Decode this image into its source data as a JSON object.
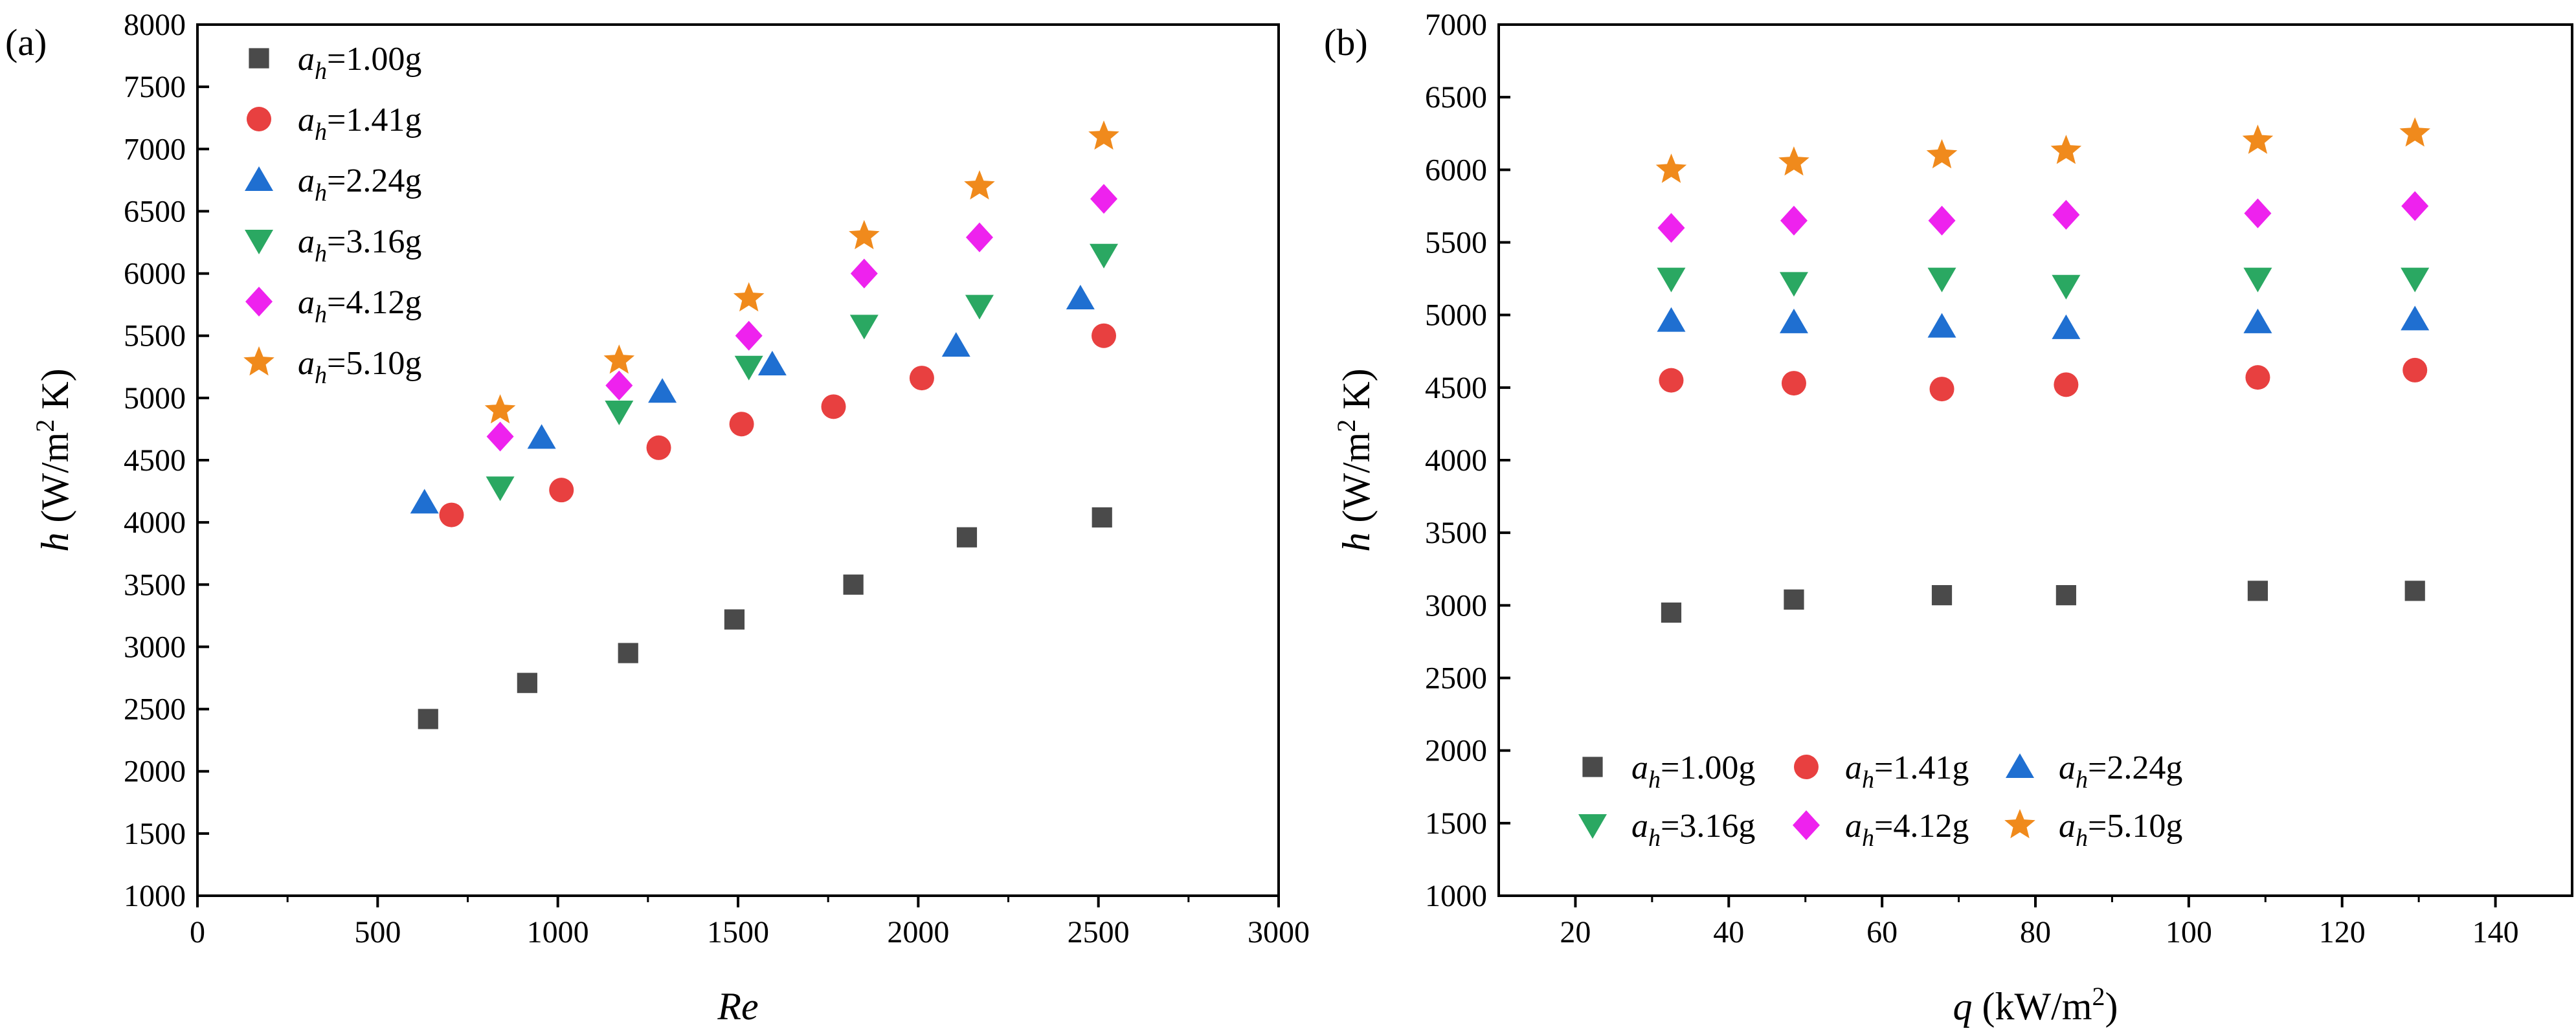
{
  "panels": [
    {
      "label": "(a)",
      "xlabel": "Re",
      "ylabel_prefix": "h",
      "ylabel_main": " (W/m",
      "ylabel_sup": "2",
      "ylabel_end": " K)"
    },
    {
      "label": "(b)",
      "xlabel_prefix": "q",
      "xlabel_main": " (kW/m",
      "xlabel_sup": "2",
      "xlabel_end": ")",
      "ylabel_prefix": "h",
      "ylabel_main": " (W/m",
      "ylabel_sup": "2",
      "ylabel_end": " K)"
    }
  ],
  "chart_data": [
    {
      "type": "scatter",
      "title": "",
      "xlabel": "Re",
      "ylabel": "h (W/m2 K)",
      "xlim": [
        0,
        3000
      ],
      "ylim": [
        1000,
        8000
      ],
      "xticks": [
        "0",
        "500",
        "1000",
        "1500",
        "2000",
        "2500",
        "3000"
      ],
      "yticks": [
        "1000",
        "1500",
        "2000",
        "2500",
        "3000",
        "3500",
        "4000",
        "4500",
        "5000",
        "5500",
        "6000",
        "6500",
        "7000",
        "7500",
        "8000"
      ],
      "legend_position": "top-left",
      "series": [
        {
          "name_main": "a",
          "name_sub": "h",
          "name_value": "=1.00g",
          "marker": "square",
          "color": "#4a4a4a",
          "x": [
            640,
            915,
            1195,
            1490,
            1820,
            2135,
            2510
          ],
          "y": [
            2420,
            2710,
            2950,
            3220,
            3500,
            3880,
            4040
          ]
        },
        {
          "name_main": "a",
          "name_sub": "h",
          "name_value": "=1.41g",
          "marker": "circle",
          "color": "#e84040",
          "x": [
            705,
            1010,
            1280,
            1510,
            1765,
            2010,
            2515
          ],
          "y": [
            4060,
            4260,
            4600,
            4790,
            4930,
            5160,
            5500
          ]
        },
        {
          "name_main": "a",
          "name_sub": "h",
          "name_value": "=2.24g",
          "marker": "triangle-up",
          "color": "#1f6fd1",
          "x": [
            630,
            955,
            1290,
            1595,
            2105,
            2450
          ],
          "y": [
            4160,
            4680,
            5050,
            5270,
            5420,
            5800
          ]
        },
        {
          "name_main": "a",
          "name_sub": "h",
          "name_value": "=3.16g",
          "marker": "triangle-down",
          "color": "#2aa862",
          "x": [
            840,
            1170,
            1530,
            1850,
            2170,
            2515
          ],
          "y": [
            4280,
            4890,
            5250,
            5580,
            5740,
            6150
          ]
        },
        {
          "name_main": "a",
          "name_sub": "h",
          "name_value": "=4.12g",
          "marker": "diamond",
          "color": "#ee22ee",
          "x": [
            840,
            1170,
            1530,
            1850,
            2170,
            2515
          ],
          "y": [
            4690,
            5100,
            5500,
            6000,
            6290,
            6600
          ]
        },
        {
          "name_main": "a",
          "name_sub": "h",
          "name_value": "=5.10g",
          "marker": "star",
          "color": "#f08a1c",
          "x": [
            840,
            1170,
            1530,
            1850,
            2170,
            2515
          ],
          "y": [
            4900,
            5300,
            5800,
            6300,
            6700,
            7100
          ]
        }
      ]
    },
    {
      "type": "scatter",
      "title": "",
      "xlabel": "q (kW/m2)",
      "ylabel": "h (W/m2 K)",
      "xlim": [
        10,
        150
      ],
      "ylim": [
        1000,
        7000
      ],
      "xticks": [
        "20",
        "40",
        "60",
        "80",
        "100",
        "120",
        "140"
      ],
      "yticks": [
        "1000",
        "1500",
        "2000",
        "2500",
        "3000",
        "3500",
        "4000",
        "4500",
        "5000",
        "5500",
        "6000",
        "6500",
        "7000"
      ],
      "legend_position": "bottom-left",
      "series": [
        {
          "name_main": "a",
          "name_sub": "h",
          "name_value": "=1.00g",
          "marker": "square",
          "color": "#4a4a4a",
          "x": [
            32.5,
            48.5,
            67.8,
            84,
            109,
            129.5
          ],
          "y": [
            2950,
            3040,
            3070,
            3070,
            3100,
            3100
          ]
        },
        {
          "name_main": "a",
          "name_sub": "h",
          "name_value": "=1.41g",
          "marker": "circle",
          "color": "#e84040",
          "x": [
            32.5,
            48.5,
            67.8,
            84,
            109,
            129.5
          ],
          "y": [
            4550,
            4530,
            4490,
            4520,
            4570,
            4620
          ]
        },
        {
          "name_main": "a",
          "name_sub": "h",
          "name_value": "=2.24g",
          "marker": "triangle-up",
          "color": "#1f6fd1",
          "x": [
            32.5,
            48.5,
            67.8,
            84,
            109,
            129.5
          ],
          "y": [
            4960,
            4950,
            4920,
            4910,
            4950,
            4970
          ]
        },
        {
          "name_main": "a",
          "name_sub": "h",
          "name_value": "=3.16g",
          "marker": "triangle-down",
          "color": "#2aa862",
          "x": [
            32.5,
            48.5,
            67.8,
            84,
            109,
            129.5
          ],
          "y": [
            5250,
            5220,
            5250,
            5200,
            5250,
            5250
          ]
        },
        {
          "name_main": "a",
          "name_sub": "h",
          "name_value": "=4.12g",
          "marker": "diamond",
          "color": "#ee22ee",
          "x": [
            32.5,
            48.5,
            67.8,
            84,
            109,
            129.5
          ],
          "y": [
            5600,
            5650,
            5650,
            5690,
            5700,
            5750
          ]
        },
        {
          "name_main": "a",
          "name_sub": "h",
          "name_value": "=5.10g",
          "marker": "star",
          "color": "#f08a1c",
          "x": [
            32.5,
            48.5,
            67.8,
            84,
            109,
            129.5
          ],
          "y": [
            6000,
            6050,
            6100,
            6130,
            6200,
            6250
          ]
        }
      ]
    }
  ]
}
